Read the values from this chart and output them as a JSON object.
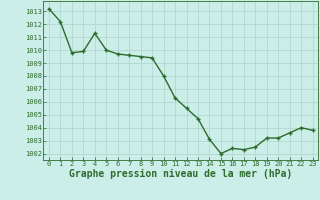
{
  "x": [
    0,
    1,
    2,
    3,
    4,
    5,
    6,
    7,
    8,
    9,
    10,
    11,
    12,
    13,
    14,
    15,
    16,
    17,
    18,
    19,
    20,
    21,
    22,
    23
  ],
  "y": [
    1013.2,
    1012.2,
    1009.8,
    1009.9,
    1011.3,
    1010.0,
    1009.7,
    1009.6,
    1009.5,
    1009.4,
    1008.0,
    1006.3,
    1005.5,
    1004.7,
    1003.1,
    1002.0,
    1002.4,
    1002.3,
    1002.5,
    1003.2,
    1003.2,
    1003.6,
    1004.0,
    1003.8
  ],
  "ylim_min": 1001.5,
  "ylim_max": 1013.8,
  "yticks": [
    1002,
    1003,
    1004,
    1005,
    1006,
    1007,
    1008,
    1009,
    1010,
    1011,
    1012,
    1013
  ],
  "xticks": [
    0,
    1,
    2,
    3,
    4,
    5,
    6,
    7,
    8,
    9,
    10,
    11,
    12,
    13,
    14,
    15,
    16,
    17,
    18,
    19,
    20,
    21,
    22,
    23
  ],
  "xlabel": "Graphe pression niveau de la mer (hPa)",
  "line_color": "#2d6b2d",
  "marker": "+",
  "bg_color": "#cceee8",
  "grid_color": "#aad4cc",
  "tick_label_fontsize": 5.0,
  "xlabel_fontsize": 7.0,
  "line_width": 1.0,
  "marker_size": 3.5,
  "marker_edge_width": 1.0
}
